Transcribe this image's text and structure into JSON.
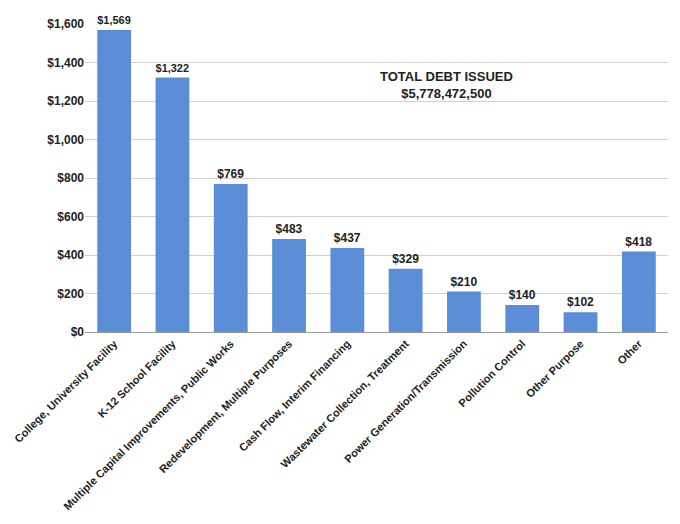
{
  "chart_data": {
    "type": "bar",
    "categories": [
      "College, University Facility",
      "K-12 School Facility",
      "Multiple Capital Improvements, Public Works",
      "Redevelopment, Multiple Purposes",
      "Cash Flow, Interim Financing",
      "Wastewater Collection, Treatment",
      "Power Generation/Transmission",
      "Pollution Control",
      "Other Purpose",
      "Other"
    ],
    "values": [
      1569,
      1322,
      769,
      483,
      437,
      329,
      210,
      140,
      102,
      418
    ],
    "value_labels": [
      "$1,569",
      "$1,322",
      "$769",
      "$483",
      "$437",
      "$329",
      "$210",
      "$140",
      "$102",
      "$418"
    ],
    "color": "#5b8ed6",
    "ylim": [
      0,
      1600
    ],
    "yticks": [
      {
        "value": 0,
        "label": "$0"
      },
      {
        "value": 200,
        "label": "$200"
      },
      {
        "value": 400,
        "label": "$400"
      },
      {
        "value": 600,
        "label": "$600"
      },
      {
        "value": 800,
        "label": "$800"
      },
      {
        "value": 1000,
        "label": "$1,000"
      },
      {
        "value": 1200,
        "label": "$1,200"
      },
      {
        "value": 1400,
        "label": "$1,400"
      },
      {
        "value": 1600,
        "label": "$1,600"
      }
    ],
    "grid": true,
    "data_labels": true,
    "annotations": [
      "TOTAL DEBT ISSUED",
      "$5,778,472,500"
    ]
  }
}
